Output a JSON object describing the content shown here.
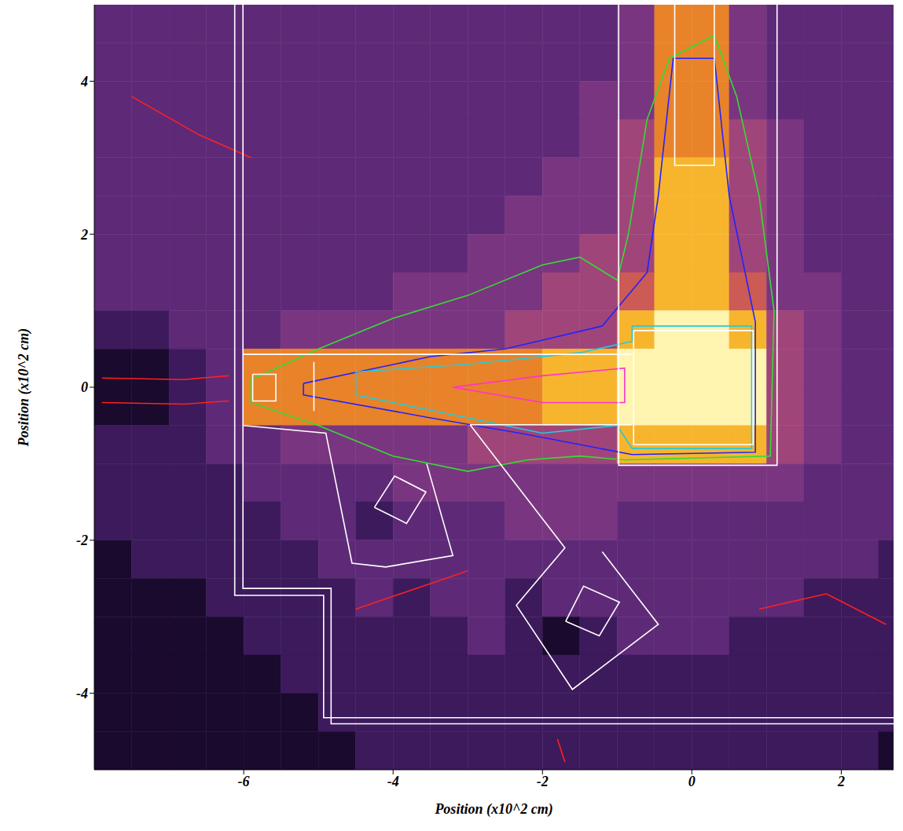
{
  "chart_data": {
    "type": "heatmap",
    "xlabel": "Position (x10^2 cm)",
    "ylabel": "Position (x10^2 cm)",
    "xlim": [
      -8,
      2.7
    ],
    "ylim": [
      -5,
      5
    ],
    "xticks": [
      -6,
      -4,
      -2,
      0,
      2
    ],
    "yticks": [
      -4,
      -2,
      0,
      2,
      4
    ],
    "grid": false,
    "clim": [
      0,
      9
    ],
    "x": [
      -7.75,
      -7.25,
      -6.75,
      -6.25,
      -5.75,
      -5.25,
      -4.75,
      -4.25,
      -3.75,
      -3.25,
      -2.75,
      -2.25,
      -1.75,
      -1.25,
      -0.75,
      -0.25,
      0.25,
      0.75,
      1.25,
      1.75,
      2.25,
      2.75
    ],
    "y": [
      4.75,
      4.25,
      3.75,
      3.25,
      2.75,
      2.25,
      1.75,
      1.25,
      0.75,
      0.25,
      -0.25,
      -0.75,
      -1.25,
      -1.75,
      -2.25,
      -2.75,
      -3.25,
      -3.75,
      -4.25,
      -4.75
    ],
    "cells": [
      [
        3,
        3,
        3,
        3,
        3,
        3,
        3,
        3,
        3,
        3,
        3,
        3,
        3,
        3,
        4,
        7,
        7,
        4,
        3,
        3,
        3,
        3
      ],
      [
        3,
        3,
        3,
        3,
        3,
        3,
        3,
        3,
        3,
        3,
        3,
        3,
        3,
        3,
        4,
        7,
        7,
        4,
        3,
        3,
        3,
        3
      ],
      [
        3,
        3,
        3,
        3,
        3,
        3,
        3,
        3,
        3,
        3,
        3,
        3,
        3,
        4,
        4,
        7,
        7,
        4,
        3,
        3,
        3,
        3
      ],
      [
        3,
        3,
        3,
        3,
        3,
        3,
        3,
        3,
        3,
        3,
        3,
        3,
        3,
        4,
        5,
        7,
        7,
        5,
        4,
        3,
        3,
        3
      ],
      [
        3,
        3,
        3,
        3,
        3,
        3,
        3,
        3,
        3,
        3,
        3,
        3,
        4,
        4,
        5,
        8,
        8,
        5,
        4,
        3,
        3,
        3
      ],
      [
        3,
        3,
        3,
        3,
        3,
        3,
        3,
        3,
        3,
        3,
        3,
        4,
        4,
        4,
        5,
        8,
        8,
        5,
        4,
        3,
        3,
        3
      ],
      [
        3,
        3,
        3,
        3,
        3,
        3,
        3,
        3,
        3,
        3,
        4,
        4,
        4,
        5,
        5,
        8,
        8,
        5,
        4,
        3,
        3,
        3
      ],
      [
        3,
        3,
        3,
        3,
        3,
        3,
        3,
        3,
        4,
        4,
        4,
        4,
        5,
        5,
        6,
        8,
        8,
        6,
        4,
        4,
        3,
        3
      ],
      [
        2,
        2,
        3,
        3,
        3,
        4,
        4,
        4,
        4,
        4,
        4,
        5,
        5,
        5,
        8,
        9,
        9,
        8,
        5,
        4,
        3,
        3
      ],
      [
        1,
        1,
        2,
        3,
        7,
        7,
        7,
        7,
        7,
        7,
        7,
        7,
        8,
        8,
        9,
        9,
        9,
        9,
        5,
        4,
        3,
        3
      ],
      [
        1,
        1,
        2,
        3,
        7,
        7,
        7,
        7,
        7,
        7,
        7,
        7,
        8,
        8,
        9,
        9,
        9,
        9,
        5,
        4,
        3,
        3
      ],
      [
        2,
        2,
        2,
        3,
        3,
        4,
        4,
        4,
        4,
        4,
        5,
        5,
        5,
        5,
        8,
        8,
        8,
        8,
        5,
        4,
        3,
        3
      ],
      [
        2,
        2,
        2,
        2,
        3,
        3,
        3,
        3,
        4,
        4,
        4,
        4,
        4,
        4,
        4,
        4,
        4,
        4,
        4,
        3,
        3,
        3
      ],
      [
        2,
        2,
        2,
        2,
        2,
        3,
        3,
        2,
        3,
        3,
        3,
        4,
        4,
        4,
        3,
        3,
        3,
        3,
        3,
        3,
        3,
        3
      ],
      [
        1,
        2,
        2,
        2,
        2,
        2,
        3,
        3,
        3,
        3,
        3,
        3,
        3,
        3,
        3,
        3,
        3,
        3,
        3,
        3,
        3,
        2
      ],
      [
        1,
        1,
        1,
        2,
        2,
        2,
        2,
        3,
        2,
        3,
        3,
        2,
        3,
        3,
        3,
        3,
        3,
        3,
        3,
        2,
        2,
        2
      ],
      [
        1,
        1,
        1,
        1,
        2,
        2,
        2,
        2,
        2,
        2,
        3,
        2,
        1,
        2,
        3,
        3,
        3,
        2,
        2,
        2,
        2,
        2
      ],
      [
        1,
        1,
        1,
        1,
        1,
        2,
        2,
        2,
        2,
        2,
        2,
        2,
        2,
        2,
        2,
        2,
        2,
        2,
        2,
        2,
        2,
        2
      ],
      [
        1,
        1,
        1,
        1,
        1,
        1,
        2,
        2,
        2,
        2,
        2,
        2,
        2,
        2,
        2,
        2,
        2,
        2,
        2,
        2,
        2,
        2
      ],
      [
        1,
        1,
        1,
        1,
        1,
        1,
        1,
        2,
        2,
        2,
        2,
        2,
        2,
        2,
        2,
        2,
        2,
        2,
        2,
        2,
        2,
        1
      ]
    ],
    "lines": [
      {
        "color": "#ff2020",
        "points": [
          [
            -7.9,
            0.12
          ],
          [
            -6.8,
            0.1
          ],
          [
            -6.2,
            0.15
          ]
        ]
      },
      {
        "color": "#ff2020",
        "points": [
          [
            -7.9,
            -0.2
          ],
          [
            -6.8,
            -0.22
          ],
          [
            -6.2,
            -0.18
          ]
        ]
      },
      {
        "color": "#ff2020",
        "points": [
          [
            -4.5,
            -2.9
          ],
          [
            -3.6,
            -2.6
          ],
          [
            -3.0,
            -2.4
          ]
        ]
      },
      {
        "color": "#ff2020",
        "points": [
          [
            0.9,
            -2.9
          ],
          [
            1.8,
            -2.7
          ],
          [
            2.6,
            -3.1
          ]
        ]
      },
      {
        "color": "#ff2020",
        "points": [
          [
            -7.5,
            3.8
          ],
          [
            -6.6,
            3.3
          ],
          [
            -5.9,
            3.0
          ]
        ]
      },
      {
        "color": "#ff2020",
        "points": [
          [
            -1.8,
            -4.6
          ],
          [
            -1.7,
            -4.9
          ]
        ]
      },
      {
        "color": "#33dd33",
        "points": [
          [
            -5.9,
            0.1
          ],
          [
            -5.0,
            0.5
          ],
          [
            -4.0,
            0.9
          ],
          [
            -3.0,
            1.2
          ],
          [
            -2.0,
            1.6
          ],
          [
            -1.5,
            1.7
          ],
          [
            -1.0,
            1.4
          ],
          [
            -0.85,
            2.0
          ],
          [
            -0.6,
            3.5
          ],
          [
            -0.3,
            4.3
          ],
          [
            0.3,
            4.6
          ],
          [
            0.6,
            3.8
          ],
          [
            0.9,
            2.5
          ],
          [
            1.1,
            1.0
          ],
          [
            1.05,
            -0.9
          ],
          [
            -0.9,
            -0.95
          ],
          [
            -1.5,
            -0.9
          ],
          [
            -2.2,
            -0.95
          ],
          [
            -3.0,
            -1.1
          ],
          [
            -4.0,
            -0.9
          ],
          [
            -5.0,
            -0.5
          ],
          [
            -5.9,
            -0.2
          ],
          [
            -5.9,
            0.1
          ]
        ]
      },
      {
        "color": "#2222ff",
        "points": [
          [
            -5.2,
            0.05
          ],
          [
            -3.5,
            0.4
          ],
          [
            -2.5,
            0.5
          ],
          [
            -1.2,
            0.8
          ],
          [
            -0.6,
            1.5
          ],
          [
            -0.45,
            2.5
          ],
          [
            -0.25,
            4.3
          ],
          [
            0.3,
            4.3
          ],
          [
            0.5,
            2.5
          ],
          [
            0.85,
            0.85
          ],
          [
            0.85,
            -0.85
          ],
          [
            -0.8,
            -0.88
          ],
          [
            -1.5,
            -0.75
          ],
          [
            -2.3,
            -0.6
          ],
          [
            -3.5,
            -0.4
          ],
          [
            -5.2,
            -0.1
          ],
          [
            -5.2,
            0.05
          ]
        ]
      },
      {
        "color": "#22ccdd",
        "points": [
          [
            -4.5,
            0.2
          ],
          [
            -3.0,
            0.3
          ],
          [
            -1.5,
            0.45
          ],
          [
            -0.8,
            0.6
          ],
          [
            -0.8,
            0.8
          ],
          [
            0.8,
            0.8
          ],
          [
            0.8,
            -0.8
          ],
          [
            -0.8,
            -0.8
          ],
          [
            -1.0,
            -0.5
          ],
          [
            -2.0,
            -0.6
          ],
          [
            -3.5,
            -0.3
          ],
          [
            -4.5,
            -0.1
          ],
          [
            -4.5,
            0.2
          ]
        ]
      },
      {
        "color": "#ff33cc",
        "points": [
          [
            -3.2,
            0.0
          ],
          [
            -2.0,
            0.15
          ],
          [
            -0.9,
            0.25
          ],
          [
            -0.9,
            -0.2
          ],
          [
            -2.0,
            -0.2
          ],
          [
            -3.2,
            0.0
          ]
        ]
      },
      {
        "color": "#ffffff",
        "points": [
          [
            -6.12,
            5
          ],
          [
            -6.12,
            -2.72
          ],
          [
            -4.93,
            -2.72
          ],
          [
            -4.93,
            -4.32
          ],
          [
            2.7,
            -4.32
          ]
        ]
      },
      {
        "color": "#ffffff",
        "points": [
          [
            -6.01,
            5
          ],
          [
            -6.01,
            -2.63
          ],
          [
            -4.83,
            -2.63
          ],
          [
            -4.83,
            -4.4
          ],
          [
            2.7,
            -4.4
          ]
        ]
      },
      {
        "color": "#ffffff",
        "points": [
          [
            -0.98,
            5
          ],
          [
            -0.98,
            -1.02
          ],
          [
            1.14,
            -1.02
          ],
          [
            1.14,
            5
          ]
        ]
      },
      {
        "color": "#ffffff",
        "points": [
          [
            -6.01,
            0.43
          ],
          [
            -0.81,
            0.43
          ]
        ]
      },
      {
        "color": "#ffffff",
        "points": [
          [
            -2.97,
            -0.49
          ],
          [
            -0.81,
            -0.49
          ]
        ]
      },
      {
        "color": "#ffffff",
        "points": [
          [
            -6.0,
            -0.5
          ],
          [
            -4.9,
            -0.6
          ],
          [
            -4.55,
            -2.3
          ],
          [
            -4.1,
            -2.35
          ],
          [
            -3.2,
            -2.2
          ],
          [
            -3.55,
            -1.0
          ]
        ]
      },
      {
        "color": "#ffffff",
        "points": [
          [
            -2.97,
            -0.49
          ],
          [
            -1.7,
            -2.1
          ],
          [
            -2.35,
            -2.85
          ],
          [
            -1.6,
            -3.95
          ],
          [
            -0.45,
            -3.1
          ],
          [
            -1.2,
            -2.15
          ]
        ]
      },
      {
        "color": "#ffffff",
        "points": [
          [
            -4.25,
            -1.57
          ],
          [
            -3.98,
            -1.16
          ],
          [
            -3.56,
            -1.37
          ],
          [
            -3.82,
            -1.78
          ],
          [
            -4.25,
            -1.57
          ]
        ]
      },
      {
        "color": "#ffffff",
        "points": [
          [
            -1.69,
            -3.06
          ],
          [
            -1.45,
            -2.6
          ],
          [
            -0.97,
            -2.81
          ],
          [
            -1.24,
            -3.25
          ],
          [
            -1.69,
            -3.06
          ]
        ]
      },
      {
        "color": "#ffffff",
        "points": [
          [
            -0.78,
            0.74
          ],
          [
            0.82,
            0.74
          ],
          [
            0.82,
            -0.75
          ],
          [
            -0.78,
            -0.75
          ],
          [
            -0.78,
            0.74
          ]
        ]
      },
      {
        "color": "#ffffff",
        "points": [
          [
            -0.23,
            5
          ],
          [
            -0.23,
            2.9
          ],
          [
            0.3,
            2.9
          ],
          [
            0.3,
            5
          ]
        ]
      },
      {
        "color": "#ffffff",
        "points": [
          [
            -5.88,
            0.17
          ],
          [
            -5.57,
            0.17
          ],
          [
            -5.57,
            -0.18
          ],
          [
            -5.88,
            -0.18
          ],
          [
            -5.88,
            0.17
          ]
        ]
      },
      {
        "color": "#ffffff",
        "points": [
          [
            -5.06,
            0.33
          ],
          [
            -5.06,
            -0.31
          ]
        ]
      }
    ]
  }
}
